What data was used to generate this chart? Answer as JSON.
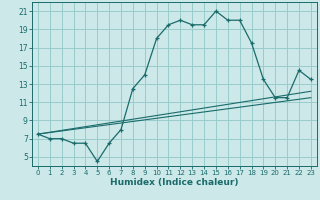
{
  "xlabel": "Humidex (Indice chaleur)",
  "background_color": "#cce8e8",
  "grid_color": "#99cccc",
  "line_color": "#1a6b6b",
  "xlim": [
    -0.5,
    23.5
  ],
  "ylim": [
    4,
    22
  ],
  "xticks": [
    0,
    1,
    2,
    3,
    4,
    5,
    6,
    7,
    8,
    9,
    10,
    11,
    12,
    13,
    14,
    15,
    16,
    17,
    18,
    19,
    20,
    21,
    22,
    23
  ],
  "yticks": [
    5,
    7,
    9,
    11,
    13,
    15,
    17,
    19,
    21
  ],
  "hours": [
    0,
    1,
    2,
    3,
    4,
    5,
    6,
    7,
    8,
    9,
    10,
    11,
    12,
    13,
    14,
    15,
    16,
    17,
    18,
    19,
    20,
    21,
    22,
    23
  ],
  "humidex": [
    7.5,
    7.0,
    7.0,
    6.5,
    6.5,
    4.5,
    6.5,
    8.0,
    12.5,
    14.0,
    18.0,
    19.5,
    20.0,
    19.5,
    19.5,
    21.0,
    20.0,
    20.0,
    17.5,
    13.5,
    11.5,
    11.5,
    14.5,
    13.5
  ],
  "ref_line1_start": 7.5,
  "ref_line1_end": 12.2,
  "ref_line2_start": 7.5,
  "ref_line2_end": 11.5
}
